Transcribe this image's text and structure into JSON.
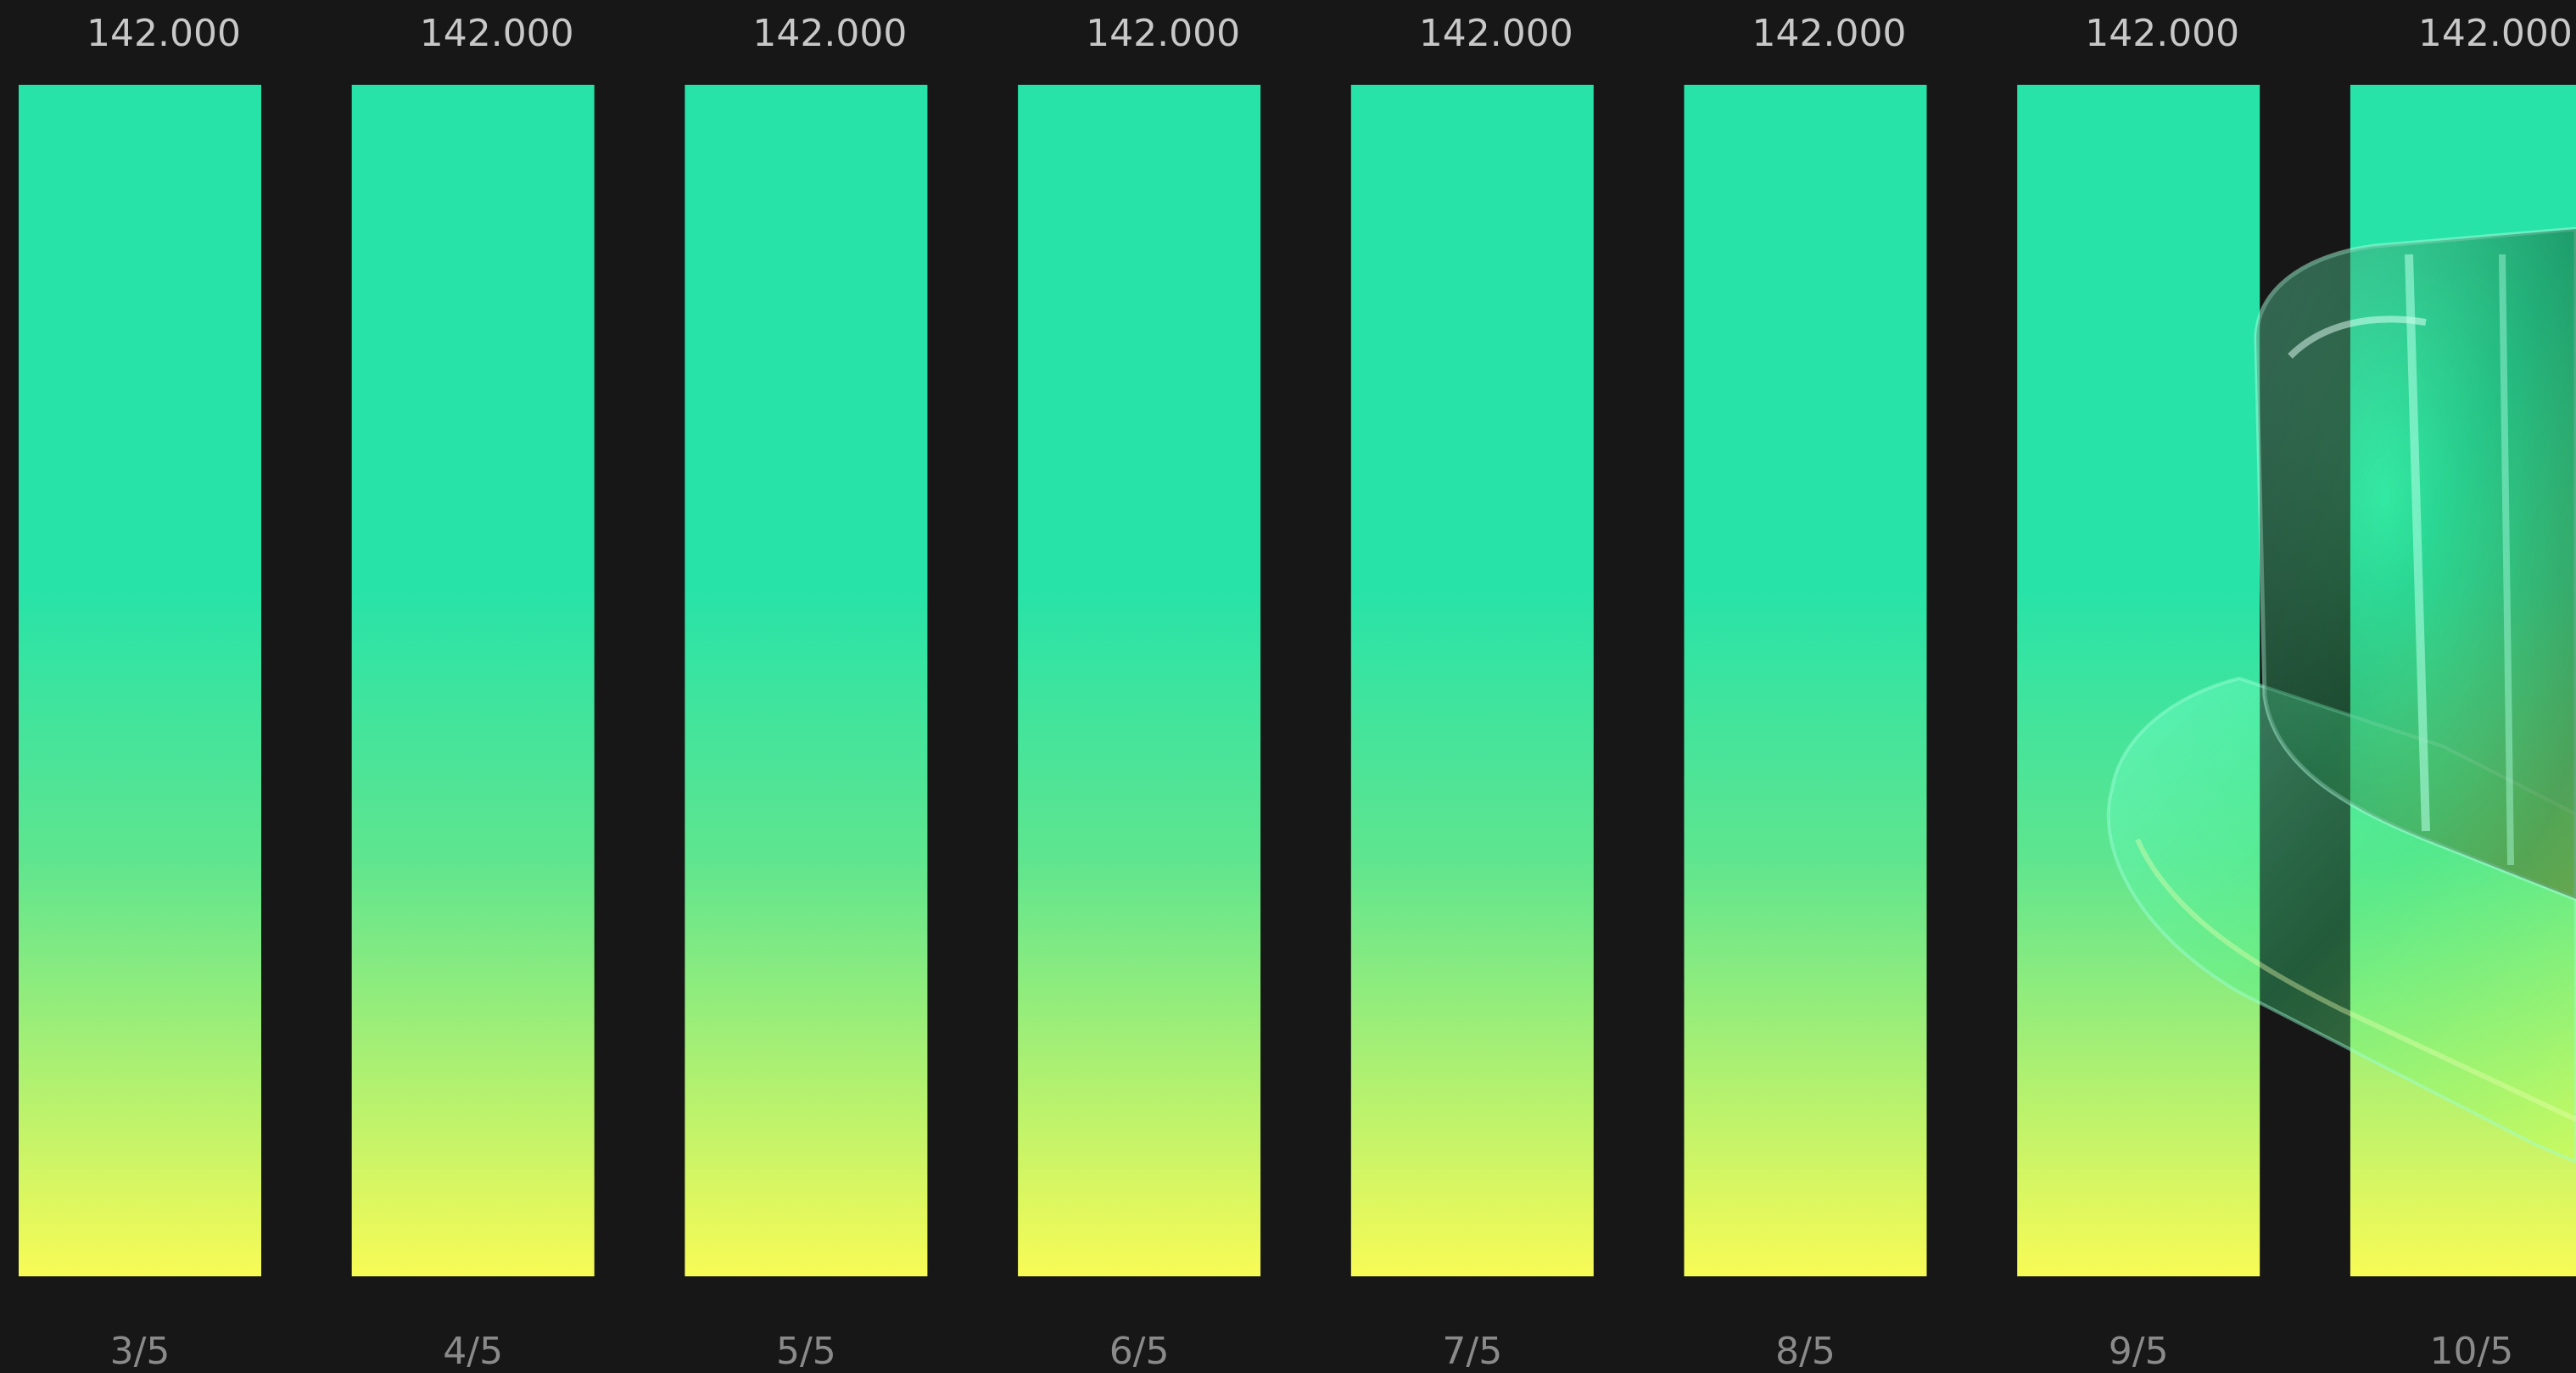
{
  "colors": {
    "background": "#171717",
    "bar_top": "#27e3a8",
    "bar_mid": "#5fe58f",
    "bar_bottom": "#f8fb55",
    "label": "#c8c8c8",
    "tick": "#8a8a8a",
    "decoration": "#5dff9a"
  },
  "chart_data": {
    "type": "bar",
    "categories": [
      "3/5",
      "4/5",
      "5/5",
      "6/5",
      "7/5",
      "8/5",
      "9/5",
      "10/5"
    ],
    "values": [
      142,
      142,
      142,
      142,
      142,
      142,
      142,
      142
    ],
    "value_labels": [
      "142.000",
      "142.000",
      "142.000",
      "142.000",
      "142.000",
      "142.000",
      "142.000",
      "142.000"
    ],
    "title": "",
    "xlabel": "",
    "ylabel": "",
    "grid": false,
    "legend": "none",
    "fill": "vertical gradient teal to yellow"
  },
  "decoration": {
    "icon": "glass-cube-product-icon"
  }
}
